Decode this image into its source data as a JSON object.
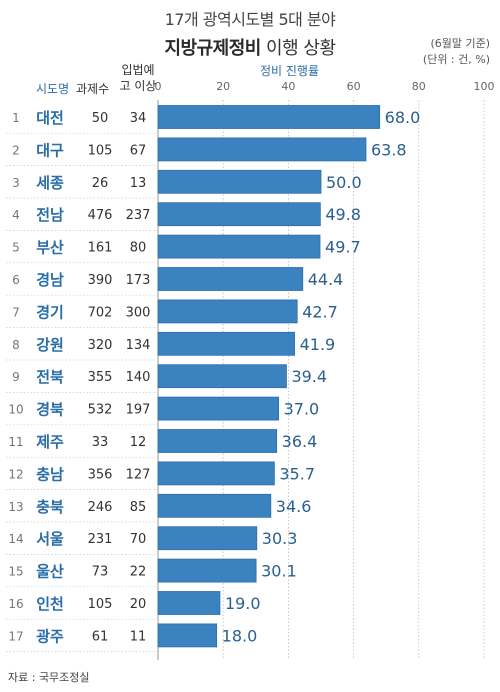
{
  "title": {
    "line1": "17개 광역시도별 5대 분야",
    "line2_bold": "지방규제정비",
    "line2_rest": " 이행 상황"
  },
  "note": {
    "line1": "(6월말 기준)",
    "line2": "(단위 : 건, %)"
  },
  "headers": {
    "region": "시도명",
    "cases": "과제수",
    "notice": "입법예고 이상",
    "rate": "정비 진행률"
  },
  "footer": "자료 : 국무조정실",
  "colors": {
    "bar": "#3b82c0",
    "bar_edge": "#2e6fa9",
    "region_text": "#2a6ea8",
    "grid": "#bbbbbb"
  },
  "chart_data": {
    "type": "bar",
    "orientation": "horizontal",
    "title": "17개 광역시도별 5대 분야 지방규제정비 이행 상황",
    "xlabel": "정비 진행률",
    "xlim": [
      0,
      100
    ],
    "xticks": [
      0,
      20,
      40,
      60,
      80,
      100
    ],
    "grid": true,
    "rows": [
      {
        "rank": 1,
        "region": "대전",
        "cases": 50,
        "notice": 34,
        "value": 68.0
      },
      {
        "rank": 2,
        "region": "대구",
        "cases": 105,
        "notice": 67,
        "value": 63.8
      },
      {
        "rank": 3,
        "region": "세종",
        "cases": 26,
        "notice": 13,
        "value": 50.0
      },
      {
        "rank": 4,
        "region": "전남",
        "cases": 476,
        "notice": 237,
        "value": 49.8
      },
      {
        "rank": 5,
        "region": "부산",
        "cases": 161,
        "notice": 80,
        "value": 49.7
      },
      {
        "rank": 6,
        "region": "경남",
        "cases": 390,
        "notice": 173,
        "value": 44.4
      },
      {
        "rank": 7,
        "region": "경기",
        "cases": 702,
        "notice": 300,
        "value": 42.7
      },
      {
        "rank": 8,
        "region": "강원",
        "cases": 320,
        "notice": 134,
        "value": 41.9
      },
      {
        "rank": 9,
        "region": "전북",
        "cases": 355,
        "notice": 140,
        "value": 39.4
      },
      {
        "rank": 10,
        "region": "경북",
        "cases": 532,
        "notice": 197,
        "value": 37.0
      },
      {
        "rank": 11,
        "region": "제주",
        "cases": 33,
        "notice": 12,
        "value": 36.4
      },
      {
        "rank": 12,
        "region": "충남",
        "cases": 356,
        "notice": 127,
        "value": 35.7
      },
      {
        "rank": 13,
        "region": "충북",
        "cases": 246,
        "notice": 85,
        "value": 34.6
      },
      {
        "rank": 14,
        "region": "서울",
        "cases": 231,
        "notice": 70,
        "value": 30.3
      },
      {
        "rank": 15,
        "region": "울산",
        "cases": 73,
        "notice": 22,
        "value": 30.1
      },
      {
        "rank": 16,
        "region": "인천",
        "cases": 105,
        "notice": 20,
        "value": 19.0
      },
      {
        "rank": 17,
        "region": "광주",
        "cases": 61,
        "notice": 11,
        "value": 18.0
      }
    ]
  }
}
